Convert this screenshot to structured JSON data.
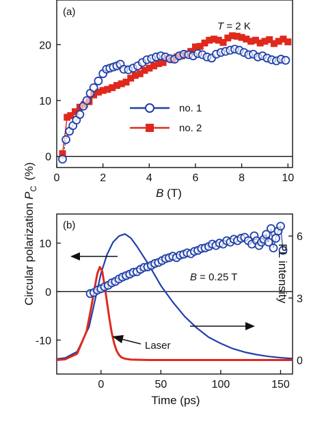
{
  "chart_data": [
    {
      "panel": "a",
      "type": "scatter",
      "panel_label": "(a)",
      "annotation": {
        "var": "T",
        "rest": " = 2 K"
      },
      "ylabel": {
        "main": "Circular polarization ",
        "sym": "P",
        "sub": "C",
        "unit": "(%)"
      },
      "xlabel": {
        "sym": "B",
        "unit": " (T)"
      },
      "xlim": [
        0,
        10.2
      ],
      "ylim": [
        -2,
        28
      ],
      "xticks": [
        0,
        2,
        4,
        6,
        8,
        10
      ],
      "yticks": [
        0,
        10,
        20
      ],
      "zero_line": true,
      "legend_position": "center-right",
      "series": [
        {
          "name": "no. 1",
          "color": "#1f3fa8",
          "marker": "open-circle",
          "points": [
            [
              0.25,
              -0.5
            ],
            [
              0.4,
              3
            ],
            [
              0.55,
              4.5
            ],
            [
              0.7,
              5.5
            ],
            [
              0.85,
              6.5
            ],
            [
              1.0,
              7.5
            ],
            [
              1.15,
              9
            ],
            [
              1.3,
              10
            ],
            [
              1.45,
              11.3
            ],
            [
              1.6,
              12.3
            ],
            [
              1.8,
              13.5
            ],
            [
              2.0,
              14.8
            ],
            [
              2.15,
              15.6
            ],
            [
              2.3,
              15.8
            ],
            [
              2.45,
              16
            ],
            [
              2.6,
              16.2
            ],
            [
              2.75,
              16.5
            ],
            [
              2.9,
              15.6
            ],
            [
              3.1,
              15.5
            ],
            [
              3.3,
              15.8
            ],
            [
              3.5,
              16.2
            ],
            [
              3.7,
              16.8
            ],
            [
              3.9,
              17.3
            ],
            [
              4.1,
              17.5
            ],
            [
              4.3,
              17.8
            ],
            [
              4.5,
              18
            ],
            [
              4.7,
              17.8
            ],
            [
              4.9,
              17.5
            ],
            [
              5.1,
              17.4
            ],
            [
              5.3,
              18
            ],
            [
              5.5,
              18.3
            ],
            [
              5.7,
              18.2
            ],
            [
              5.9,
              18
            ],
            [
              6.1,
              18.4
            ],
            [
              6.3,
              18.2
            ],
            [
              6.5,
              17.8
            ],
            [
              6.7,
              17.6
            ],
            [
              6.9,
              18.3
            ],
            [
              7.1,
              18.6
            ],
            [
              7.3,
              18.8
            ],
            [
              7.5,
              19
            ],
            [
              7.7,
              19.2
            ],
            [
              7.9,
              19
            ],
            [
              8.1,
              18.6
            ],
            [
              8.3,
              18.2
            ],
            [
              8.5,
              18.3
            ],
            [
              8.7,
              17.8
            ],
            [
              8.9,
              18
            ],
            [
              9.1,
              17.6
            ],
            [
              9.3,
              17.3
            ],
            [
              9.5,
              17.1
            ],
            [
              9.7,
              17.4
            ],
            [
              9.9,
              17.2
            ]
          ]
        },
        {
          "name": "no. 2",
          "color": "#e0281c",
          "marker": "filled-square",
          "points": [
            [
              0.25,
              0.5
            ],
            [
              0.45,
              7
            ],
            [
              0.6,
              7.3
            ],
            [
              0.8,
              8
            ],
            [
              1.0,
              8.8
            ],
            [
              1.2,
              9.3
            ],
            [
              1.4,
              9.8
            ],
            [
              1.6,
              11
            ],
            [
              1.8,
              11.5
            ],
            [
              2.0,
              11.8
            ],
            [
              2.2,
              12
            ],
            [
              2.4,
              12.3
            ],
            [
              2.6,
              12.7
            ],
            [
              2.8,
              13
            ],
            [
              3.0,
              13.3
            ],
            [
              3.2,
              14
            ],
            [
              3.4,
              14.5
            ],
            [
              3.6,
              14.8
            ],
            [
              3.8,
              15.4
            ],
            [
              4.0,
              15.8
            ],
            [
              4.2,
              16.2
            ],
            [
              4.4,
              16.6
            ],
            [
              4.6,
              16.8
            ],
            [
              4.8,
              17.5
            ],
            [
              5.0,
              17.3
            ],
            [
              5.2,
              17.8
            ],
            [
              5.4,
              18
            ],
            [
              5.6,
              18.3
            ],
            [
              5.8,
              18.8
            ],
            [
              6.0,
              19.6
            ],
            [
              6.2,
              19.7
            ],
            [
              6.4,
              20.3
            ],
            [
              6.6,
              20.8
            ],
            [
              6.8,
              21
            ],
            [
              7.0,
              20.8
            ],
            [
              7.2,
              20.4
            ],
            [
              7.4,
              21.2
            ],
            [
              7.6,
              21.6
            ],
            [
              7.8,
              21.5
            ],
            [
              8.0,
              21.3
            ],
            [
              8.2,
              21
            ],
            [
              8.4,
              20.6
            ],
            [
              8.6,
              20.8
            ],
            [
              8.8,
              20.3
            ],
            [
              9.0,
              20.6
            ],
            [
              9.2,
              20.9
            ],
            [
              9.4,
              20.2
            ],
            [
              9.6,
              20.6
            ],
            [
              9.8,
              21
            ],
            [
              10.0,
              20.5
            ]
          ]
        }
      ]
    },
    {
      "panel": "b",
      "type": "scatter+line",
      "panel_label": "(b)",
      "annotation": {
        "var": "B",
        "rest": " = 0.25 T"
      },
      "xlabel": "Time (ps)",
      "ylabel_right": "PL intensity",
      "laser_label": "Laser",
      "xlim": [
        -37,
        160
      ],
      "ylim": [
        -17,
        16
      ],
      "y2lim": [
        -0.15,
        7
      ],
      "xticks": [
        0,
        50,
        100,
        150
      ],
      "yticks": [
        -10,
        0,
        10
      ],
      "y2ticks": [
        0,
        3,
        6
      ],
      "zero_line": true,
      "series": [
        {
          "name": "polarization",
          "color": "#1f3fa8",
          "marker": "open-circle",
          "axis": "left",
          "points": [
            [
              -9,
              -0.4
            ],
            [
              -6,
              -0.2
            ],
            [
              -3,
              0.3
            ],
            [
              0,
              0.6
            ],
            [
              3,
              1
            ],
            [
              6,
              1.3
            ],
            [
              9,
              1.8
            ],
            [
              12,
              2.1
            ],
            [
              15,
              2.6
            ],
            [
              18,
              3
            ],
            [
              21,
              3.3
            ],
            [
              24,
              3.6
            ],
            [
              27,
              4
            ],
            [
              30,
              4.1
            ],
            [
              33,
              4.6
            ],
            [
              36,
              5
            ],
            [
              39,
              5.1
            ],
            [
              42,
              5.4
            ],
            [
              45,
              5.8
            ],
            [
              48,
              6
            ],
            [
              51,
              6.4
            ],
            [
              54,
              6.8
            ],
            [
              57,
              7
            ],
            [
              60,
              7.3
            ],
            [
              63,
              7
            ],
            [
              66,
              7.5
            ],
            [
              69,
              7.7
            ],
            [
              72,
              8
            ],
            [
              75,
              7.8
            ],
            [
              78,
              8.3
            ],
            [
              81,
              8.5
            ],
            [
              84,
              8.9
            ],
            [
              87,
              9
            ],
            [
              90,
              9.3
            ],
            [
              93,
              9.8
            ],
            [
              96,
              9.5
            ],
            [
              99,
              10
            ],
            [
              102,
              9.8
            ],
            [
              105,
              10.5
            ],
            [
              108,
              10.2
            ],
            [
              111,
              10.8
            ],
            [
              114,
              10.5
            ],
            [
              117,
              11
            ],
            [
              120,
              11.2
            ],
            [
              123,
              10.5
            ],
            [
              126,
              9.8
            ],
            [
              128,
              11.5
            ],
            [
              130,
              10.5
            ],
            [
              132,
              9.5
            ],
            [
              134,
              10.2
            ],
            [
              136,
              10.8
            ],
            [
              138,
              11.8
            ],
            [
              140,
              10.2
            ],
            [
              142,
              13
            ],
            [
              144,
              9
            ],
            [
              146,
              11
            ],
            [
              148,
              12.5
            ],
            [
              150,
              13.5
            ],
            [
              152,
              8.5
            ]
          ]
        },
        {
          "name": "PL",
          "color": "#1f3fa8",
          "style": "line",
          "axis": "right",
          "x": [
            -37,
            -30,
            -20,
            -10,
            -5,
            0,
            5,
            10,
            15,
            20,
            25,
            30,
            40,
            50,
            60,
            70,
            80,
            90,
            100,
            110,
            120,
            130,
            140,
            150,
            160
          ],
          "y": [
            0.05,
            0.1,
            0.4,
            1.6,
            2.9,
            4.2,
            5.1,
            5.7,
            6,
            6.1,
            5.9,
            5.5,
            4.6,
            3.6,
            2.8,
            2.1,
            1.55,
            1.1,
            0.8,
            0.55,
            0.38,
            0.26,
            0.17,
            0.11,
            0.07
          ]
        },
        {
          "name": "Laser",
          "color": "#e0281c",
          "style": "line",
          "axis": "right",
          "x": [
            -37,
            -30,
            -20,
            -12,
            -8,
            -5,
            -3,
            -1,
            1,
            3,
            5,
            7,
            9,
            11,
            13,
            15,
            17,
            20,
            25,
            30,
            40,
            60,
            100,
            160
          ],
          "y": [
            0,
            0.03,
            0.3,
            1.4,
            2.6,
            3.6,
            4.2,
            4.5,
            4.3,
            3.6,
            2.8,
            2,
            1.3,
            0.8,
            0.45,
            0.25,
            0.13,
            0.06,
            0.02,
            0.01,
            0,
            0,
            0,
            0
          ]
        }
      ]
    }
  ]
}
